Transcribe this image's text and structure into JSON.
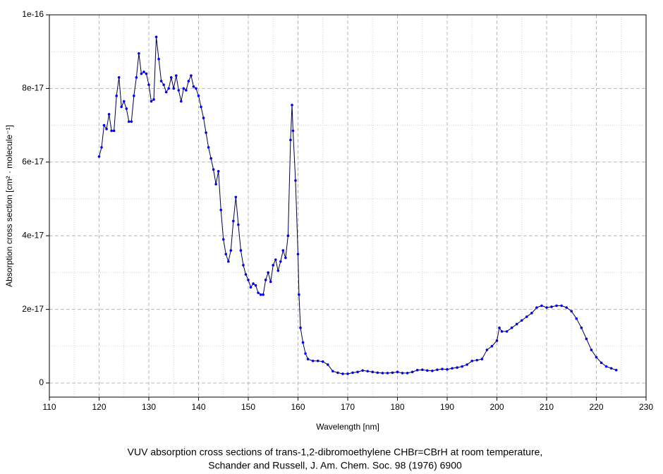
{
  "chart_data": {
    "type": "line",
    "xlabel": "Wavelength [nm]",
    "ylabel": "Absorption cross section [cm² · molecule⁻¹]",
    "caption": [
      "VUV absorption cross sections of trans-1,2-dibromoethylene CHBr=CBrH at room temperature,",
      "Schander and Russell, J. Am. Chem. Soc. 98 (1976) 6900"
    ],
    "x": [
      120,
      120.5,
      121,
      121.5,
      122,
      122.5,
      123,
      123.5,
      124,
      124.5,
      125,
      125.5,
      126,
      126.5,
      127,
      127.5,
      128,
      128.5,
      129,
      129.5,
      130,
      130.5,
      131,
      131.5,
      132,
      132.5,
      133,
      133.5,
      134,
      134.5,
      135,
      135.5,
      136,
      136.5,
      137,
      137.5,
      138,
      138.5,
      139,
      139.5,
      140,
      140.5,
      141,
      141.5,
      142,
      142.5,
      143,
      143.5,
      144,
      144.5,
      145,
      145.5,
      146,
      146.5,
      147,
      147.5,
      148,
      148.5,
      149,
      149.5,
      150,
      150.5,
      151,
      151.5,
      152,
      152.5,
      153,
      153.5,
      154,
      154.5,
      155,
      155.5,
      156,
      156.5,
      157,
      157.5,
      158,
      158.5,
      158.8,
      159,
      159.5,
      160,
      160.2,
      160.5,
      161,
      161.5,
      162,
      163,
      164,
      165,
      166,
      167,
      168,
      169,
      170,
      171,
      172,
      173,
      174,
      175,
      176,
      177,
      178,
      179,
      180,
      181,
      182,
      183,
      184,
      185,
      186,
      187,
      188,
      189,
      190,
      191,
      192,
      193,
      194,
      195,
      196,
      197,
      198,
      199,
      200,
      200.5,
      201,
      202,
      203,
      204,
      205,
      206,
      207,
      208,
      209,
      210,
      211,
      212,
      213,
      214,
      215,
      216,
      217,
      218,
      219,
      220,
      221,
      222,
      223,
      224
    ],
    "values": [
      6.15e-17,
      6.4e-17,
      7e-17,
      6.9e-17,
      7.3e-17,
      6.85e-17,
      6.85e-17,
      7.8e-17,
      8.3e-17,
      7.5e-17,
      7.65e-17,
      7.45e-17,
      7.1e-17,
      7.1e-17,
      7.8e-17,
      8.3e-17,
      8.95e-17,
      8.4e-17,
      8.45e-17,
      8.4e-17,
      8.1e-17,
      7.65e-17,
      7.7e-17,
      9.4e-17,
      8.8e-17,
      8.2e-17,
      8.1e-17,
      7.9e-17,
      8e-17,
      8.3e-17,
      8e-17,
      8.35e-17,
      7.95e-17,
      7.65e-17,
      8e-17,
      7.95e-17,
      8.2e-17,
      8.35e-17,
      8.05e-17,
      8e-17,
      7.8e-17,
      7.5e-17,
      7.2e-17,
      6.8e-17,
      6.4e-17,
      6.1e-17,
      5.8e-17,
      5.4e-17,
      5.75e-17,
      4.7e-17,
      3.9e-17,
      3.5e-17,
      3.3e-17,
      3.6e-17,
      4.4e-17,
      5.05e-17,
      4.3e-17,
      3.6e-17,
      3.2e-17,
      2.95e-17,
      2.8e-17,
      2.6e-17,
      2.7e-17,
      2.65e-17,
      2.45e-17,
      2.4e-17,
      2.4e-17,
      2.8e-17,
      3e-17,
      2.75e-17,
      3.2e-17,
      3.35e-17,
      3.05e-17,
      3.3e-17,
      3.6e-17,
      3.4e-17,
      4e-17,
      6.6e-17,
      7.55e-17,
      6.85e-17,
      5.5e-17,
      3.5e-17,
      2.4e-17,
      1.5e-17,
      1.1e-17,
      8e-18,
      6.5e-18,
      6e-18,
      6e-18,
      5.8e-18,
      5e-18,
      3.2e-18,
      2.8e-18,
      2.5e-18,
      2.5e-18,
      2.8e-18,
      3e-18,
      3.4e-18,
      3.2e-18,
      3e-18,
      2.8e-18,
      2.7e-18,
      2.7e-18,
      2.8e-18,
      3e-18,
      2.7e-18,
      2.7e-18,
      3e-18,
      3.5e-18,
      3.6e-18,
      3.4e-18,
      3.3e-18,
      3.6e-18,
      3.8e-18,
      3.7e-18,
      4e-18,
      4.2e-18,
      4.5e-18,
      5e-18,
      6e-18,
      6.2e-18,
      6.5e-18,
      9e-18,
      1e-17,
      1.15e-17,
      1.5e-17,
      1.4e-17,
      1.4e-17,
      1.5e-17,
      1.6e-17,
      1.7e-17,
      1.8e-17,
      1.9e-17,
      2.05e-17,
      2.1e-17,
      2.05e-17,
      2.07e-17,
      2.1e-17,
      2.1e-17,
      2.05e-17,
      1.95e-17,
      1.75e-17,
      1.5e-17,
      1.2e-17,
      9e-18,
      7e-18,
      5.5e-18,
      4.5e-18,
      4e-18,
      3.5e-18
    ],
    "line_color": "#000040",
    "color": "#0000dd",
    "xlim": [
      110,
      230
    ],
    "xticks": [
      110,
      120,
      130,
      140,
      150,
      160,
      170,
      180,
      190,
      200,
      210,
      220,
      230
    ],
    "xticks_minor": [
      115,
      125,
      135,
      145,
      155,
      165,
      175,
      185,
      195,
      205,
      215,
      225
    ],
    "ylim": [
      -3.83e-18,
      1e-16
    ],
    "yticks": [
      0,
      2e-17,
      4e-17,
      6e-17,
      8e-17,
      1e-16
    ],
    "yticks_minor": [
      1e-17,
      3e-17,
      5e-17,
      7e-17,
      9e-17
    ],
    "grid": true
  }
}
